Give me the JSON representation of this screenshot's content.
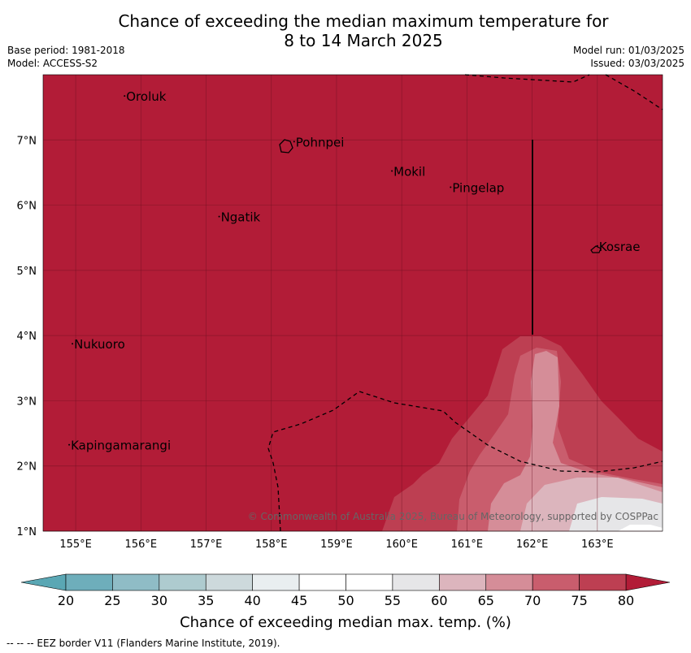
{
  "title": {
    "line1": "Chance of exceeding the median maximum temperature for",
    "line2": "8 to 14 March 2025"
  },
  "meta": {
    "base_period": "Base period: 1981-2018",
    "model": "Model: ACCESS-S2",
    "model_run": "Model run: 01/03/2025",
    "issued": "Issued: 03/03/2025"
  },
  "map": {
    "lon_range": [
      154.5,
      164.0
    ],
    "lat_range": [
      1.0,
      8.0
    ],
    "lon_ticks": [
      "155°E",
      "156°E",
      "157°E",
      "158°E",
      "159°E",
      "160°E",
      "161°E",
      "162°E",
      "163°E"
    ],
    "lat_ticks": [
      "1°N",
      "2°N",
      "3°N",
      "4°N",
      "5°N",
      "6°N",
      "7°N"
    ],
    "places": [
      {
        "name": "Oroluk",
        "lon": 155.75,
        "lat": 7.6
      },
      {
        "name": "Pohnpei",
        "lon": 158.35,
        "lat": 6.9
      },
      {
        "name": "Mokil",
        "lon": 159.85,
        "lat": 6.45
      },
      {
        "name": "Pingelap",
        "lon": 160.75,
        "lat": 6.2
      },
      {
        "name": "Ngatik",
        "lon": 157.2,
        "lat": 5.75
      },
      {
        "name": "Kosrae",
        "lon": 163.0,
        "lat": 5.3
      },
      {
        "name": "Nukuoro",
        "lon": 154.95,
        "lat": 3.8
      },
      {
        "name": "Kapingamarangi",
        "lon": 154.9,
        "lat": 2.25
      }
    ],
    "copyright": "© Commonwealth of Australia 2025, Bureau of Meteorology, supported by COSPPac",
    "background_color": "#b21c37"
  },
  "colorbar": {
    "ticks": [
      "20",
      "25",
      "30",
      "35",
      "40",
      "45",
      "50",
      "55",
      "60",
      "65",
      "70",
      "75",
      "80"
    ],
    "colors": [
      "#6eaebb",
      "#8fbcc6",
      "#aecbcf",
      "#cdd9dc",
      "#e9eef0",
      "#ffffff",
      "#ffffff",
      "#e6e6e8",
      "#dcb5bd",
      "#d58d98",
      "#c95d6d",
      "#bd3f52"
    ],
    "under_color": "#5aa7b4",
    "over_color": "#b21c37",
    "label": "Chance of exceeding median max. temp. (%)"
  },
  "footnote": "--  --  -- EEZ border V11 (Flanders Marine Institute, 2019)."
}
